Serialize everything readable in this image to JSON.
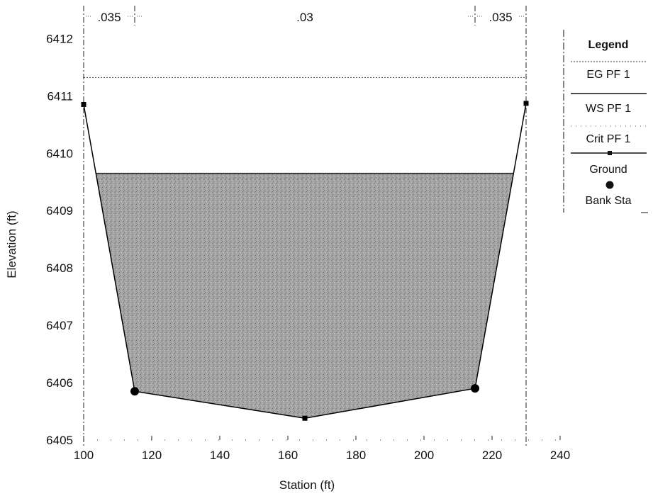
{
  "chart_data": {
    "type": "area",
    "xlabel": "Station (ft)",
    "ylabel": "Elevation (ft)",
    "xlim": [
      100,
      240
    ],
    "ylim": [
      6405,
      6412.4
    ],
    "x_ticks": [
      100,
      120,
      140,
      160,
      180,
      200,
      220,
      240
    ],
    "y_ticks": [
      6405,
      6406,
      6407,
      6408,
      6409,
      6410,
      6411,
      6412
    ],
    "grid": false,
    "legend_placement": "right",
    "legend": {
      "title": "Legend",
      "entries": [
        "EG PF 1",
        "WS PF 1",
        "Crit PF 1",
        "Ground",
        "Bank Sta"
      ]
    },
    "ground": {
      "x": [
        100,
        115,
        165,
        215,
        230
      ],
      "y": [
        6410.85,
        6405.85,
        6405.38,
        6405.9,
        6410.87
      ]
    },
    "bank_stations": {
      "x": [
        115,
        215
      ],
      "y": [
        6405.85,
        6405.9
      ]
    },
    "eg_pf1": 6411.32,
    "ws_pf1": 6409.65,
    "crit_pf1": 6409.55,
    "mannings_n": [
      {
        "value": ".035",
        "from": 100,
        "to": 115
      },
      {
        "value": ".03",
        "from": 115,
        "to": 215
      },
      {
        "value": ".035",
        "from": 215,
        "to": 230
      }
    ],
    "colors": {
      "water": "#9a9a9a",
      "ground": "#000000",
      "eg": "#555555"
    }
  }
}
